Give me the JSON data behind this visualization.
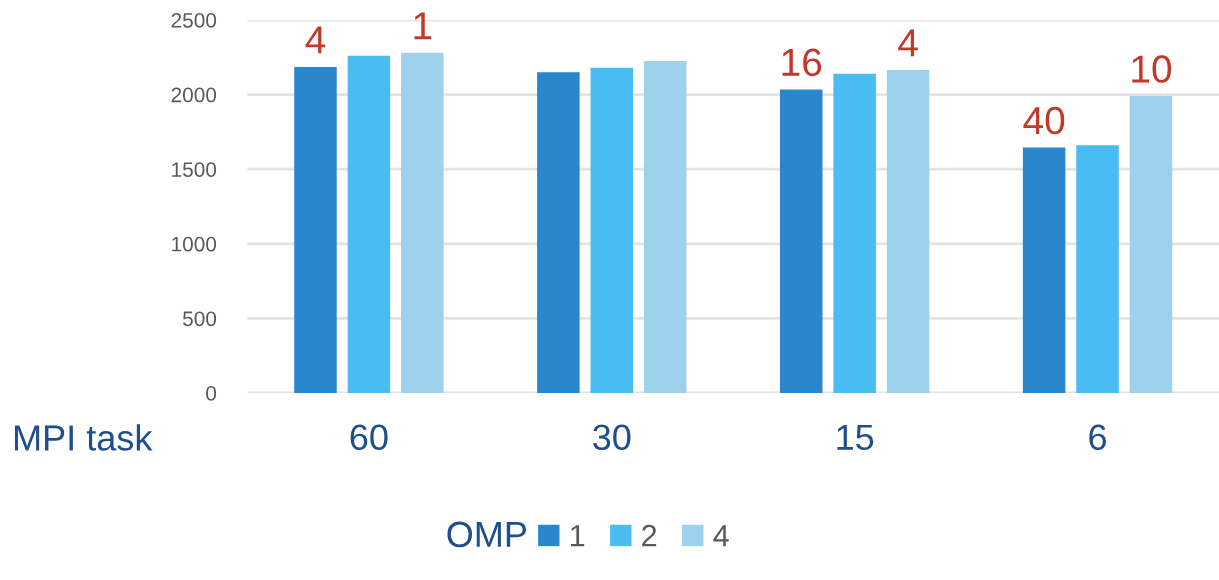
{
  "chart_data": {
    "type": "bar",
    "xlabel": "MPI task",
    "legend_title": "OMP",
    "categories": [
      "60",
      "30",
      "15",
      "6"
    ],
    "series": [
      {
        "name": "1",
        "color": "#2a86cd",
        "values": [
          2185,
          2150,
          2035,
          1645
        ]
      },
      {
        "name": "2",
        "color": "#49bdf1",
        "values": [
          2260,
          2180,
          2140,
          1660
        ]
      },
      {
        "name": "4",
        "color": "#9ed1ec",
        "values": [
          2280,
          2225,
          2165,
          1990
        ]
      }
    ],
    "ylim": [
      0,
      2500
    ],
    "yticks": [
      0,
      500,
      1000,
      1500,
      2000,
      2500
    ],
    "grid": "y",
    "legend": "bottom",
    "annotations": [
      {
        "text": "4",
        "y": 2185
      },
      {
        "text": "1",
        "y": 2280
      },
      {
        "text": "16",
        "y": 2035
      },
      {
        "text": "4",
        "y": 2165
      },
      {
        "text": "40",
        "y": 1645
      },
      {
        "text": "10",
        "y": 1990
      }
    ]
  }
}
